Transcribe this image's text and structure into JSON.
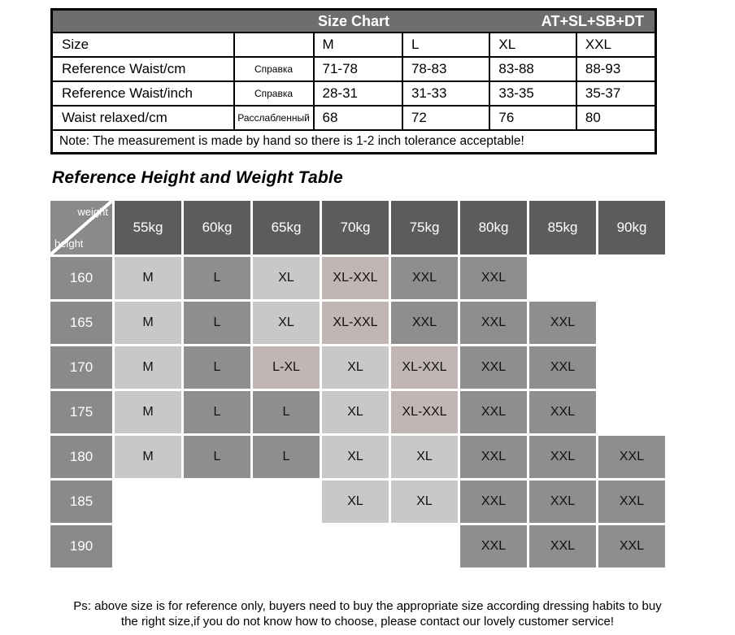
{
  "size_chart": {
    "header": {
      "title": "Size Chart",
      "code": "AT+SL+SB+DT"
    },
    "rows": [
      {
        "label": "Size",
        "ru": "",
        "values": [
          "M",
          "L",
          "XL",
          "XXL"
        ]
      },
      {
        "label": "Reference Waist/cm",
        "ru": "Справка",
        "values": [
          "71-78",
          "78-83",
          "83-88",
          "88-93"
        ]
      },
      {
        "label": "Reference Waist/inch",
        "ru": "Справка",
        "values": [
          "28-31",
          "31-33",
          "33-35",
          "35-37"
        ]
      },
      {
        "label": "Waist relaxed/cm",
        "ru": "Расслабленный",
        "values": [
          "68",
          "72",
          "76",
          "80"
        ]
      }
    ],
    "note": "Note: The measurement is made by hand so there is 1-2 inch tolerance acceptable!"
  },
  "hw_table": {
    "title": "Reference Height and Weight Table",
    "corner": {
      "top": "weight",
      "bottom": "height"
    },
    "weights": [
      "55kg",
      "60kg",
      "65kg",
      "70kg",
      "75kg",
      "80kg",
      "85kg",
      "90kg"
    ],
    "heights": [
      "160",
      "165",
      "170",
      "175",
      "180",
      "185",
      "190"
    ],
    "cells": [
      [
        "M",
        "L",
        "XL",
        "XL-XXL",
        "XXL",
        "XXL",
        "",
        ""
      ],
      [
        "M",
        "L",
        "XL",
        "XL-XXL",
        "XXL",
        "XXL",
        "XXL",
        ""
      ],
      [
        "M",
        "L",
        "L-XL",
        "XL",
        "XL-XXL",
        "XXL",
        "XXL",
        ""
      ],
      [
        "M",
        "L",
        "L",
        "XL",
        "XL-XXL",
        "XXL",
        "XXL",
        ""
      ],
      [
        "M",
        "L",
        "L",
        "XL",
        "XL",
        "XXL",
        "XXL",
        "XXL"
      ],
      [
        "",
        "",
        "",
        "XL",
        "XL",
        "XXL",
        "XXL",
        "XXL"
      ],
      [
        "",
        "",
        "",
        "",
        "",
        "XXL",
        "XXL",
        "XXL"
      ]
    ],
    "cell_styles": {
      "M": "light",
      "L": "medium",
      "XL": "light",
      "XXL": "medium",
      "L-XL": "pink",
      "XL-XXL": "pink",
      "": "empty"
    }
  },
  "footer": {
    "line1": "Ps: above size is for reference only, buyers need to buy the appropriate size according dressing habits to buy",
    "line2": "the right size,if you do not know how to choose, please contact our lovely customer service!"
  },
  "colors": {
    "header_bar": "#6e6e6e",
    "kg_header": "#5c5c5c",
    "height_cell": "#8a8a8a",
    "cell_light": "#c8c8c8",
    "cell_medium": "#8e8e8e",
    "cell_pink": "#c1b6b3",
    "cell_empty": "#ffffff",
    "border": "#000000"
  }
}
